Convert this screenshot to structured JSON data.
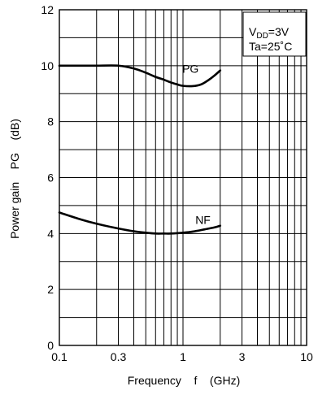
{
  "chart_data": {
    "type": "line",
    "title": "",
    "xlabel": "Frequency    f    (GHz)",
    "ylabel": "Power gain    PG    (dB)",
    "x_scale": "log",
    "xlim": [
      0.1,
      10
    ],
    "ylim": [
      0,
      12
    ],
    "x_ticks": [
      {
        "value": 0.1,
        "label": "0.1"
      },
      {
        "value": 0.3,
        "label": "0.3"
      },
      {
        "value": 1,
        "label": "1"
      },
      {
        "value": 3,
        "label": "3"
      },
      {
        "value": 10,
        "label": "10"
      }
    ],
    "y_ticks": [
      {
        "value": 0,
        "label": "0"
      },
      {
        "value": 2,
        "label": "2"
      },
      {
        "value": 4,
        "label": "4"
      },
      {
        "value": 6,
        "label": "6"
      },
      {
        "value": 8,
        "label": "8"
      },
      {
        "value": 10,
        "label": "10"
      },
      {
        "value": 12,
        "label": "12"
      }
    ],
    "grid": true,
    "series": [
      {
        "name": "PG",
        "x": [
          0.1,
          0.15,
          0.2,
          0.3,
          0.4,
          0.5,
          0.6,
          0.7,
          0.8,
          0.9,
          1.0,
          1.2,
          1.4,
          1.6,
          1.8,
          2.0
        ],
        "y": [
          10.0,
          10.0,
          10.0,
          10.0,
          9.9,
          9.75,
          9.6,
          9.5,
          9.4,
          9.33,
          9.28,
          9.27,
          9.33,
          9.48,
          9.65,
          9.83
        ]
      },
      {
        "name": "NF",
        "x": [
          0.1,
          0.15,
          0.2,
          0.3,
          0.4,
          0.5,
          0.6,
          0.7,
          0.8,
          1.0,
          1.2,
          1.5,
          1.8,
          2.0
        ],
        "y": [
          4.75,
          4.5,
          4.35,
          4.18,
          4.08,
          4.03,
          4.0,
          4.0,
          4.0,
          4.03,
          4.07,
          4.15,
          4.22,
          4.28
        ]
      }
    ],
    "annotations": [
      "VDD=3V",
      "Ta=25°C"
    ]
  },
  "legend": {
    "vdd_prefix": "V",
    "vdd_sub": "DD",
    "vdd_value": "=3V",
    "ta": "Ta=25˚C"
  }
}
